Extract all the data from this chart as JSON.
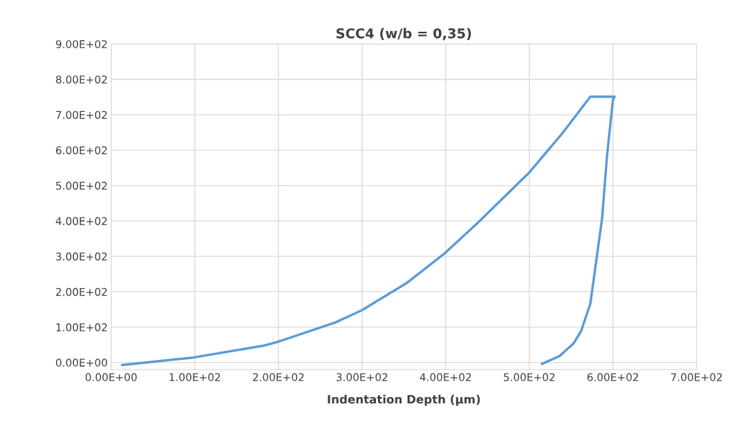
{
  "chart_data": {
    "type": "line",
    "title": "SCC4 (w/b = 0,35)",
    "xlabel": "Indentation Depth (µm)",
    "series": [
      {
        "color": "#5b9bd5",
        "x": [
          13,
          98,
          183,
          200,
          268,
          300,
          353,
          399,
          438,
          500,
          540,
          573,
          602,
          600,
          593,
          587,
          580,
          573,
          562,
          553,
          536,
          515
        ],
        "values": [
          -7,
          14,
          48,
          59,
          113,
          148,
          224,
          309,
          394,
          537,
          649,
          751,
          751,
          742,
          585,
          406,
          286,
          166,
          89,
          54,
          18,
          -4
        ]
      }
    ],
    "xlim": [
      0,
      700
    ],
    "ylim": [
      -20,
      900
    ],
    "xticks": [
      {
        "value": 0,
        "label": "0.00E+00"
      },
      {
        "value": 100,
        "label": "1.00E+02"
      },
      {
        "value": 200,
        "label": "2.00E+02"
      },
      {
        "value": 300,
        "label": "3.00E+02"
      },
      {
        "value": 400,
        "label": "4.00E+02"
      },
      {
        "value": 500,
        "label": "5.00E+02"
      },
      {
        "value": 600,
        "label": "6.00E+02"
      },
      {
        "value": 700,
        "label": "7.00E+02"
      }
    ],
    "yticks": [
      {
        "value": 0,
        "label": "0.00E+00"
      },
      {
        "value": 100,
        "label": "1.00E+02"
      },
      {
        "value": 200,
        "label": "2.00E+02"
      },
      {
        "value": 300,
        "label": "3.00E+02"
      },
      {
        "value": 400,
        "label": "4.00E+02"
      },
      {
        "value": 500,
        "label": "5.00E+02"
      },
      {
        "value": 600,
        "label": "6.00E+02"
      },
      {
        "value": 700,
        "label": "7.00E+02"
      },
      {
        "value": 800,
        "label": "8.00E+02"
      },
      {
        "value": 900,
        "label": "9.00E+02"
      }
    ],
    "grid": true,
    "marker": "none",
    "line_style": "solid"
  }
}
